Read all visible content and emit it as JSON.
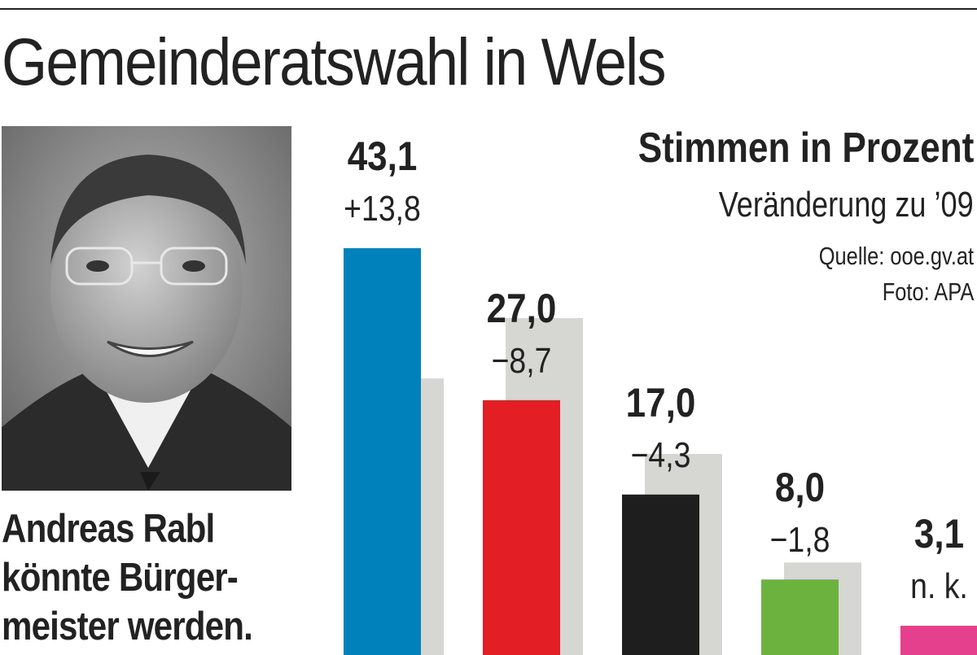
{
  "title": "Gemeinderatswahl in Wels",
  "subtitle": "Stimmen in Prozent",
  "change_label": "Veränderung zu ’09",
  "source": "Quelle: ooe.gv.at",
  "photo_credit": "Foto: APA",
  "caption_lines": [
    "Andreas Rabl",
    "könnte Bürger-",
    "meister werden."
  ],
  "photo": {
    "description_icon": "portrait-photo"
  },
  "colors": {
    "ghost": "#d6d6d3",
    "text": "#222222"
  },
  "chart_data": {
    "type": "bar",
    "ylim": [
      0,
      55
    ],
    "grid": false,
    "bars": [
      {
        "value": 43.1,
        "value_label": "43,1",
        "change_label": "+13,8",
        "previous": 29.3,
        "color": "#0081bb"
      },
      {
        "value": 27.0,
        "value_label": "27,0",
        "change_label": "−8,7",
        "previous": 35.7,
        "color": "#e31e24"
      },
      {
        "value": 17.0,
        "value_label": "17,0",
        "change_label": "−4,3",
        "previous": 21.3,
        "color": "#1e1e1e"
      },
      {
        "value": 8.0,
        "value_label": "8,0",
        "change_label": "−1,8",
        "previous": 9.8,
        "color": "#6bb33e"
      },
      {
        "value": 3.1,
        "value_label": "3,1",
        "change_label": "n. k.",
        "previous": null,
        "color": "#e5408d"
      }
    ]
  }
}
